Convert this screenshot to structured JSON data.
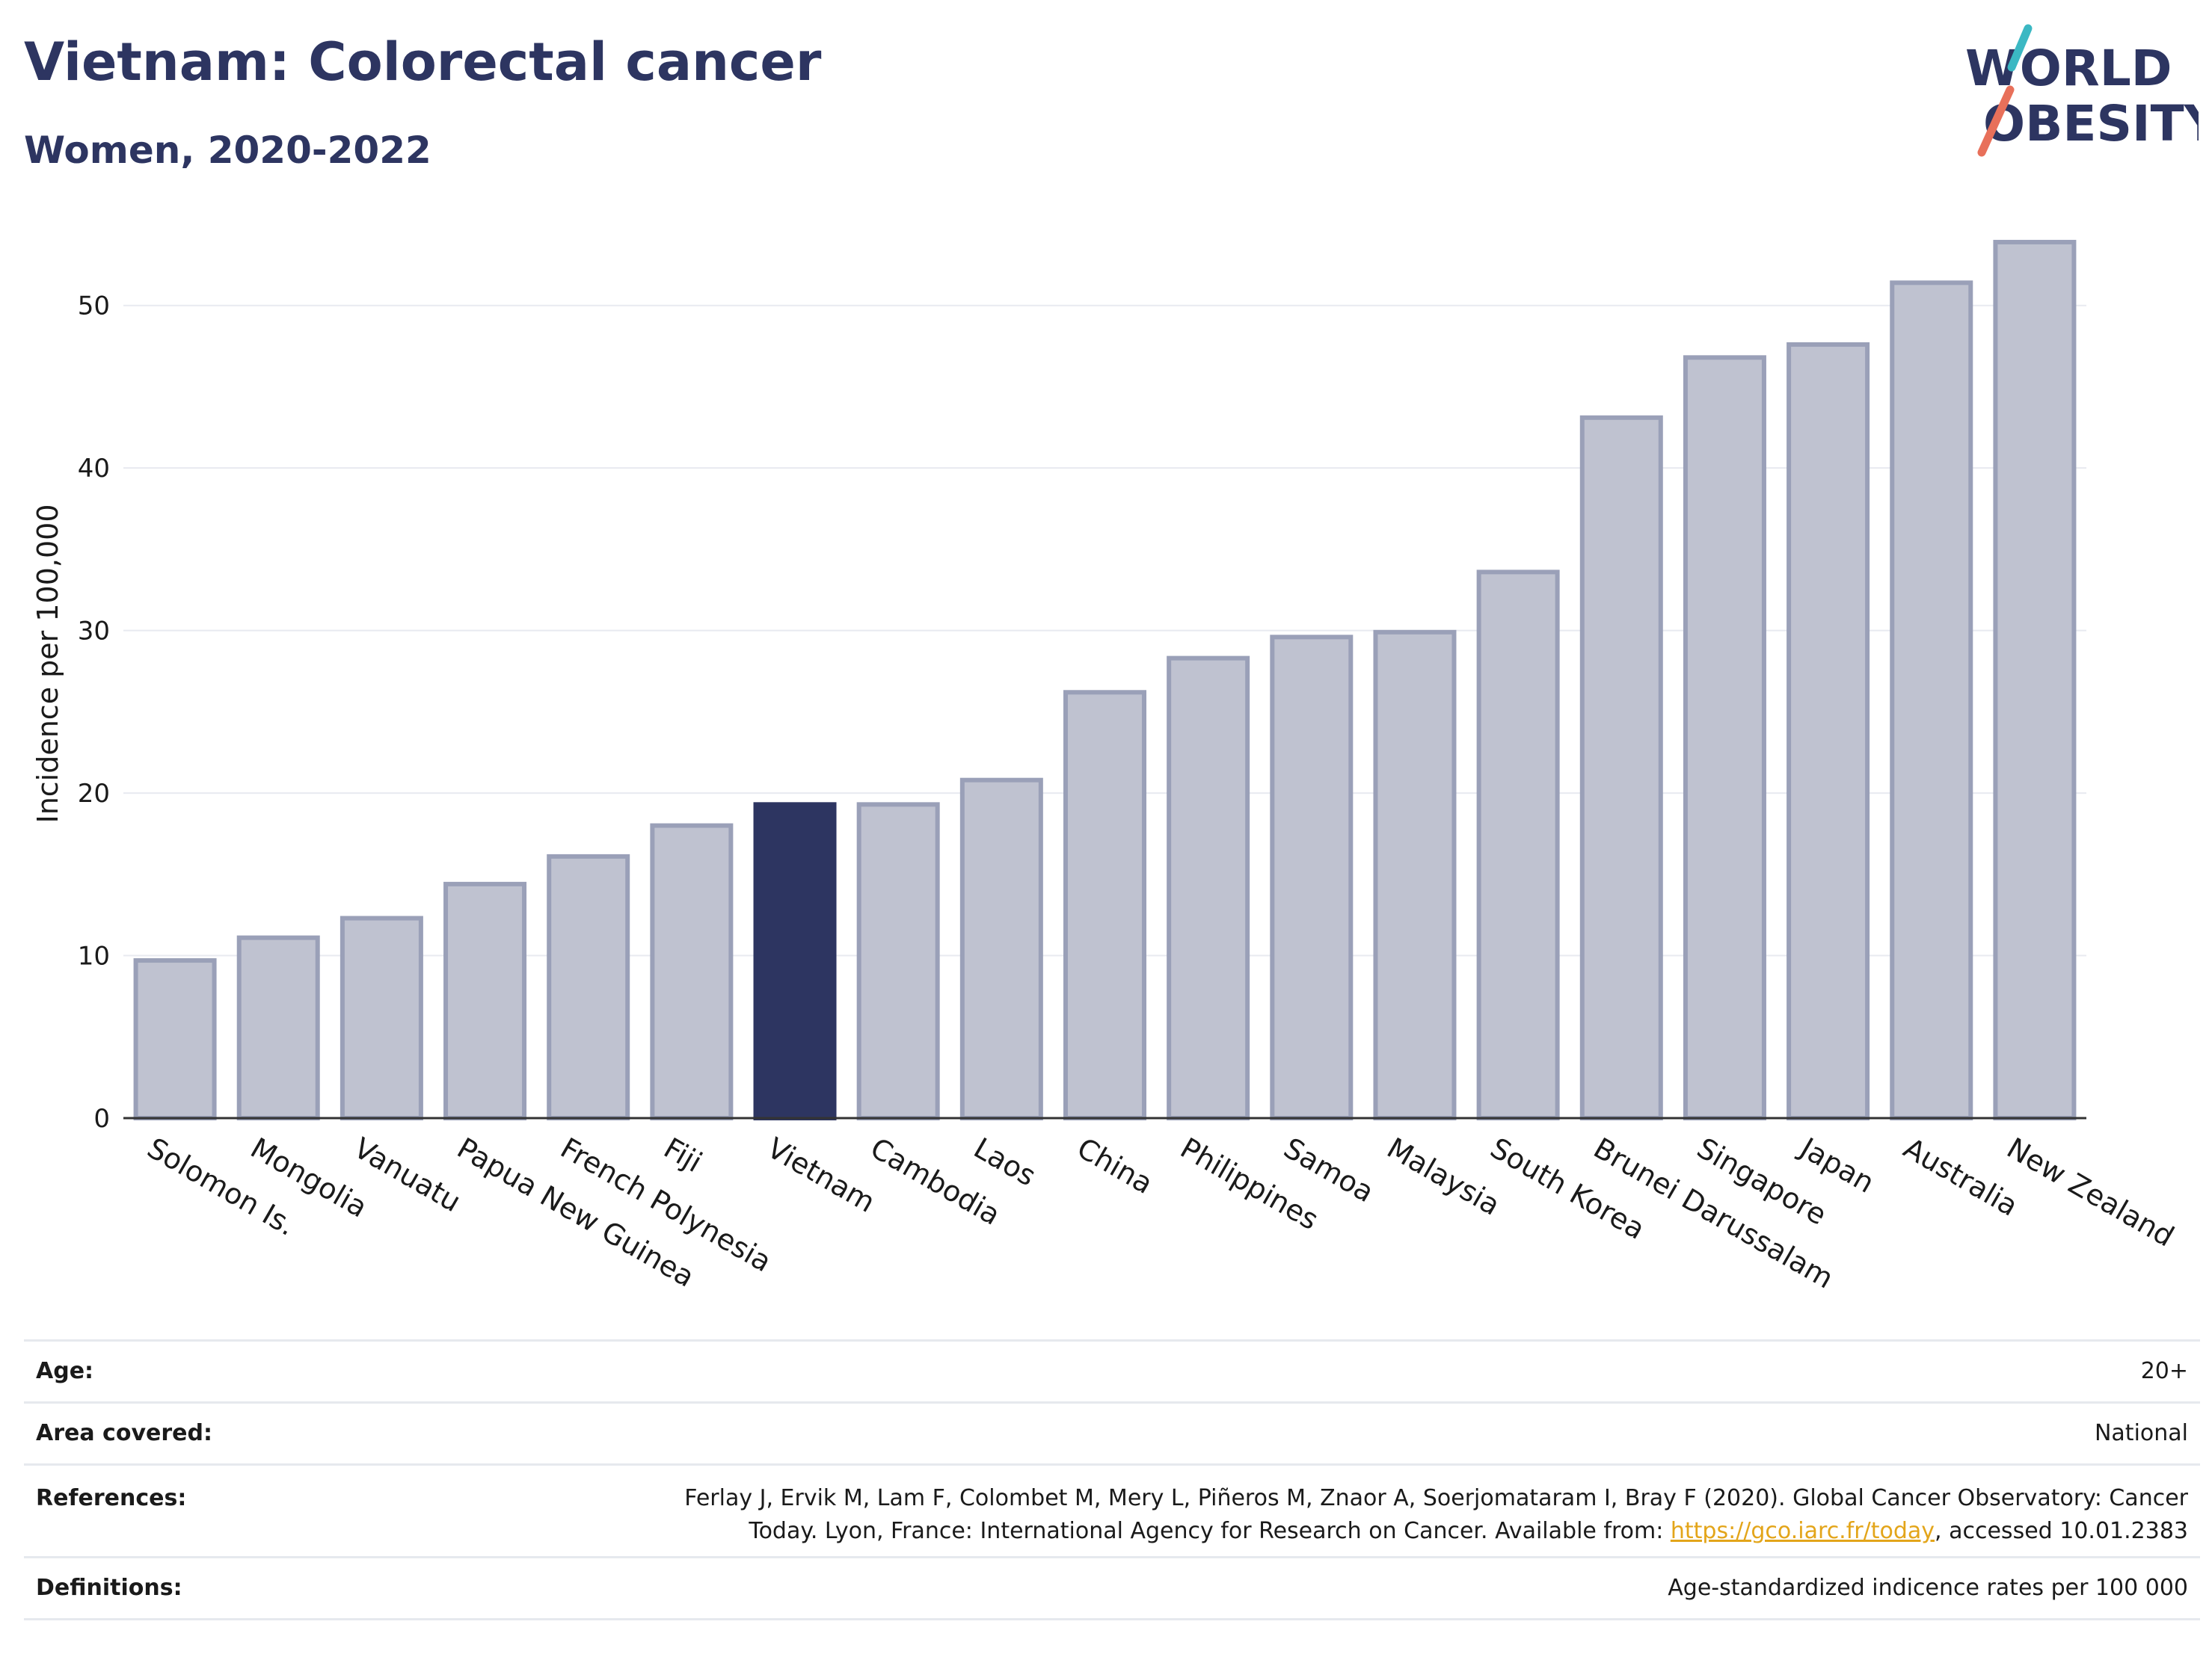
{
  "header": {
    "title": "Vietnam: Colorectal cancer",
    "subtitle": "Women, 2020-2022"
  },
  "logo": {
    "line1": "WORLD",
    "line2": "OBESITY",
    "slash_colors": [
      "#3bb8c3",
      "#e8705a"
    ],
    "text_color": "#2d3561"
  },
  "colors": {
    "highlight_bar": "#2d3561",
    "bar_fill": "#bfc2d0",
    "bar_stroke": "#9aa0b8",
    "grid": "#e8eaf0",
    "link": "#e3a51a"
  },
  "chart_data": {
    "type": "bar",
    "ylabel": "Incidence per 100,000",
    "ylim": [
      0,
      55
    ],
    "yticks": [
      0,
      10,
      20,
      30,
      40,
      50
    ],
    "grid": true,
    "highlight": "Vietnam",
    "categories": [
      "Solomon Is.",
      "Mongolia",
      "Vanuatu",
      "Papua New Guinea",
      "French Polynesia",
      "Fiji",
      "Vietnam",
      "Cambodia",
      "Laos",
      "China",
      "Philippines",
      "Samoa",
      "Malaysia",
      "South Korea",
      "Brunei Darussalam",
      "Singapore",
      "Japan",
      "Australia",
      "New Zealand"
    ],
    "values": [
      9.7,
      11.1,
      12.3,
      14.4,
      16.1,
      18.0,
      19.3,
      19.3,
      20.8,
      26.2,
      28.3,
      29.6,
      29.9,
      33.6,
      43.1,
      46.8,
      47.6,
      51.4,
      53.9
    ]
  },
  "info": {
    "age_label": "Age:",
    "age_value": "20+",
    "area_label": "Area covered:",
    "area_value": "National",
    "references_label": "References:",
    "references_line1": "Ferlay J, Ervik M, Lam F, Colombet M, Mery L, Piñeros M, Znaor A, Soerjomataram I, Bray F (2020). Global Cancer Observatory: Cancer",
    "references_line2_pre": "Today. Lyon, France: International Agency for Research on Cancer. Available from: ",
    "references_link": "https://gco.iarc.fr/today",
    "references_line2_post": ", accessed 10.01.2383",
    "definitions_label": "Definitions:",
    "definitions_value": "Age-standardized indicence rates per 100 000"
  }
}
